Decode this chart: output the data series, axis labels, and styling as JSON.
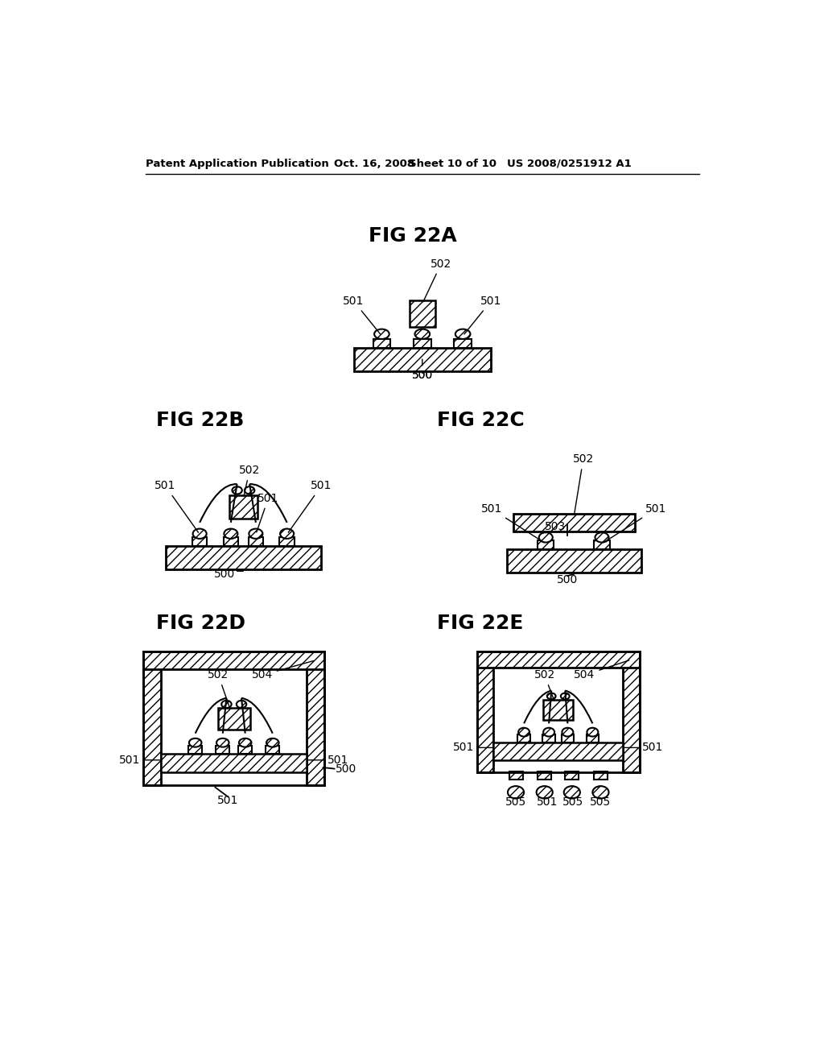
{
  "header_left": "Patent Application Publication",
  "header_mid1": "Oct. 16, 2008",
  "header_mid2": "Sheet 10 of 10",
  "header_right": "US 2008/0251912 A1",
  "bg_color": "#ffffff"
}
